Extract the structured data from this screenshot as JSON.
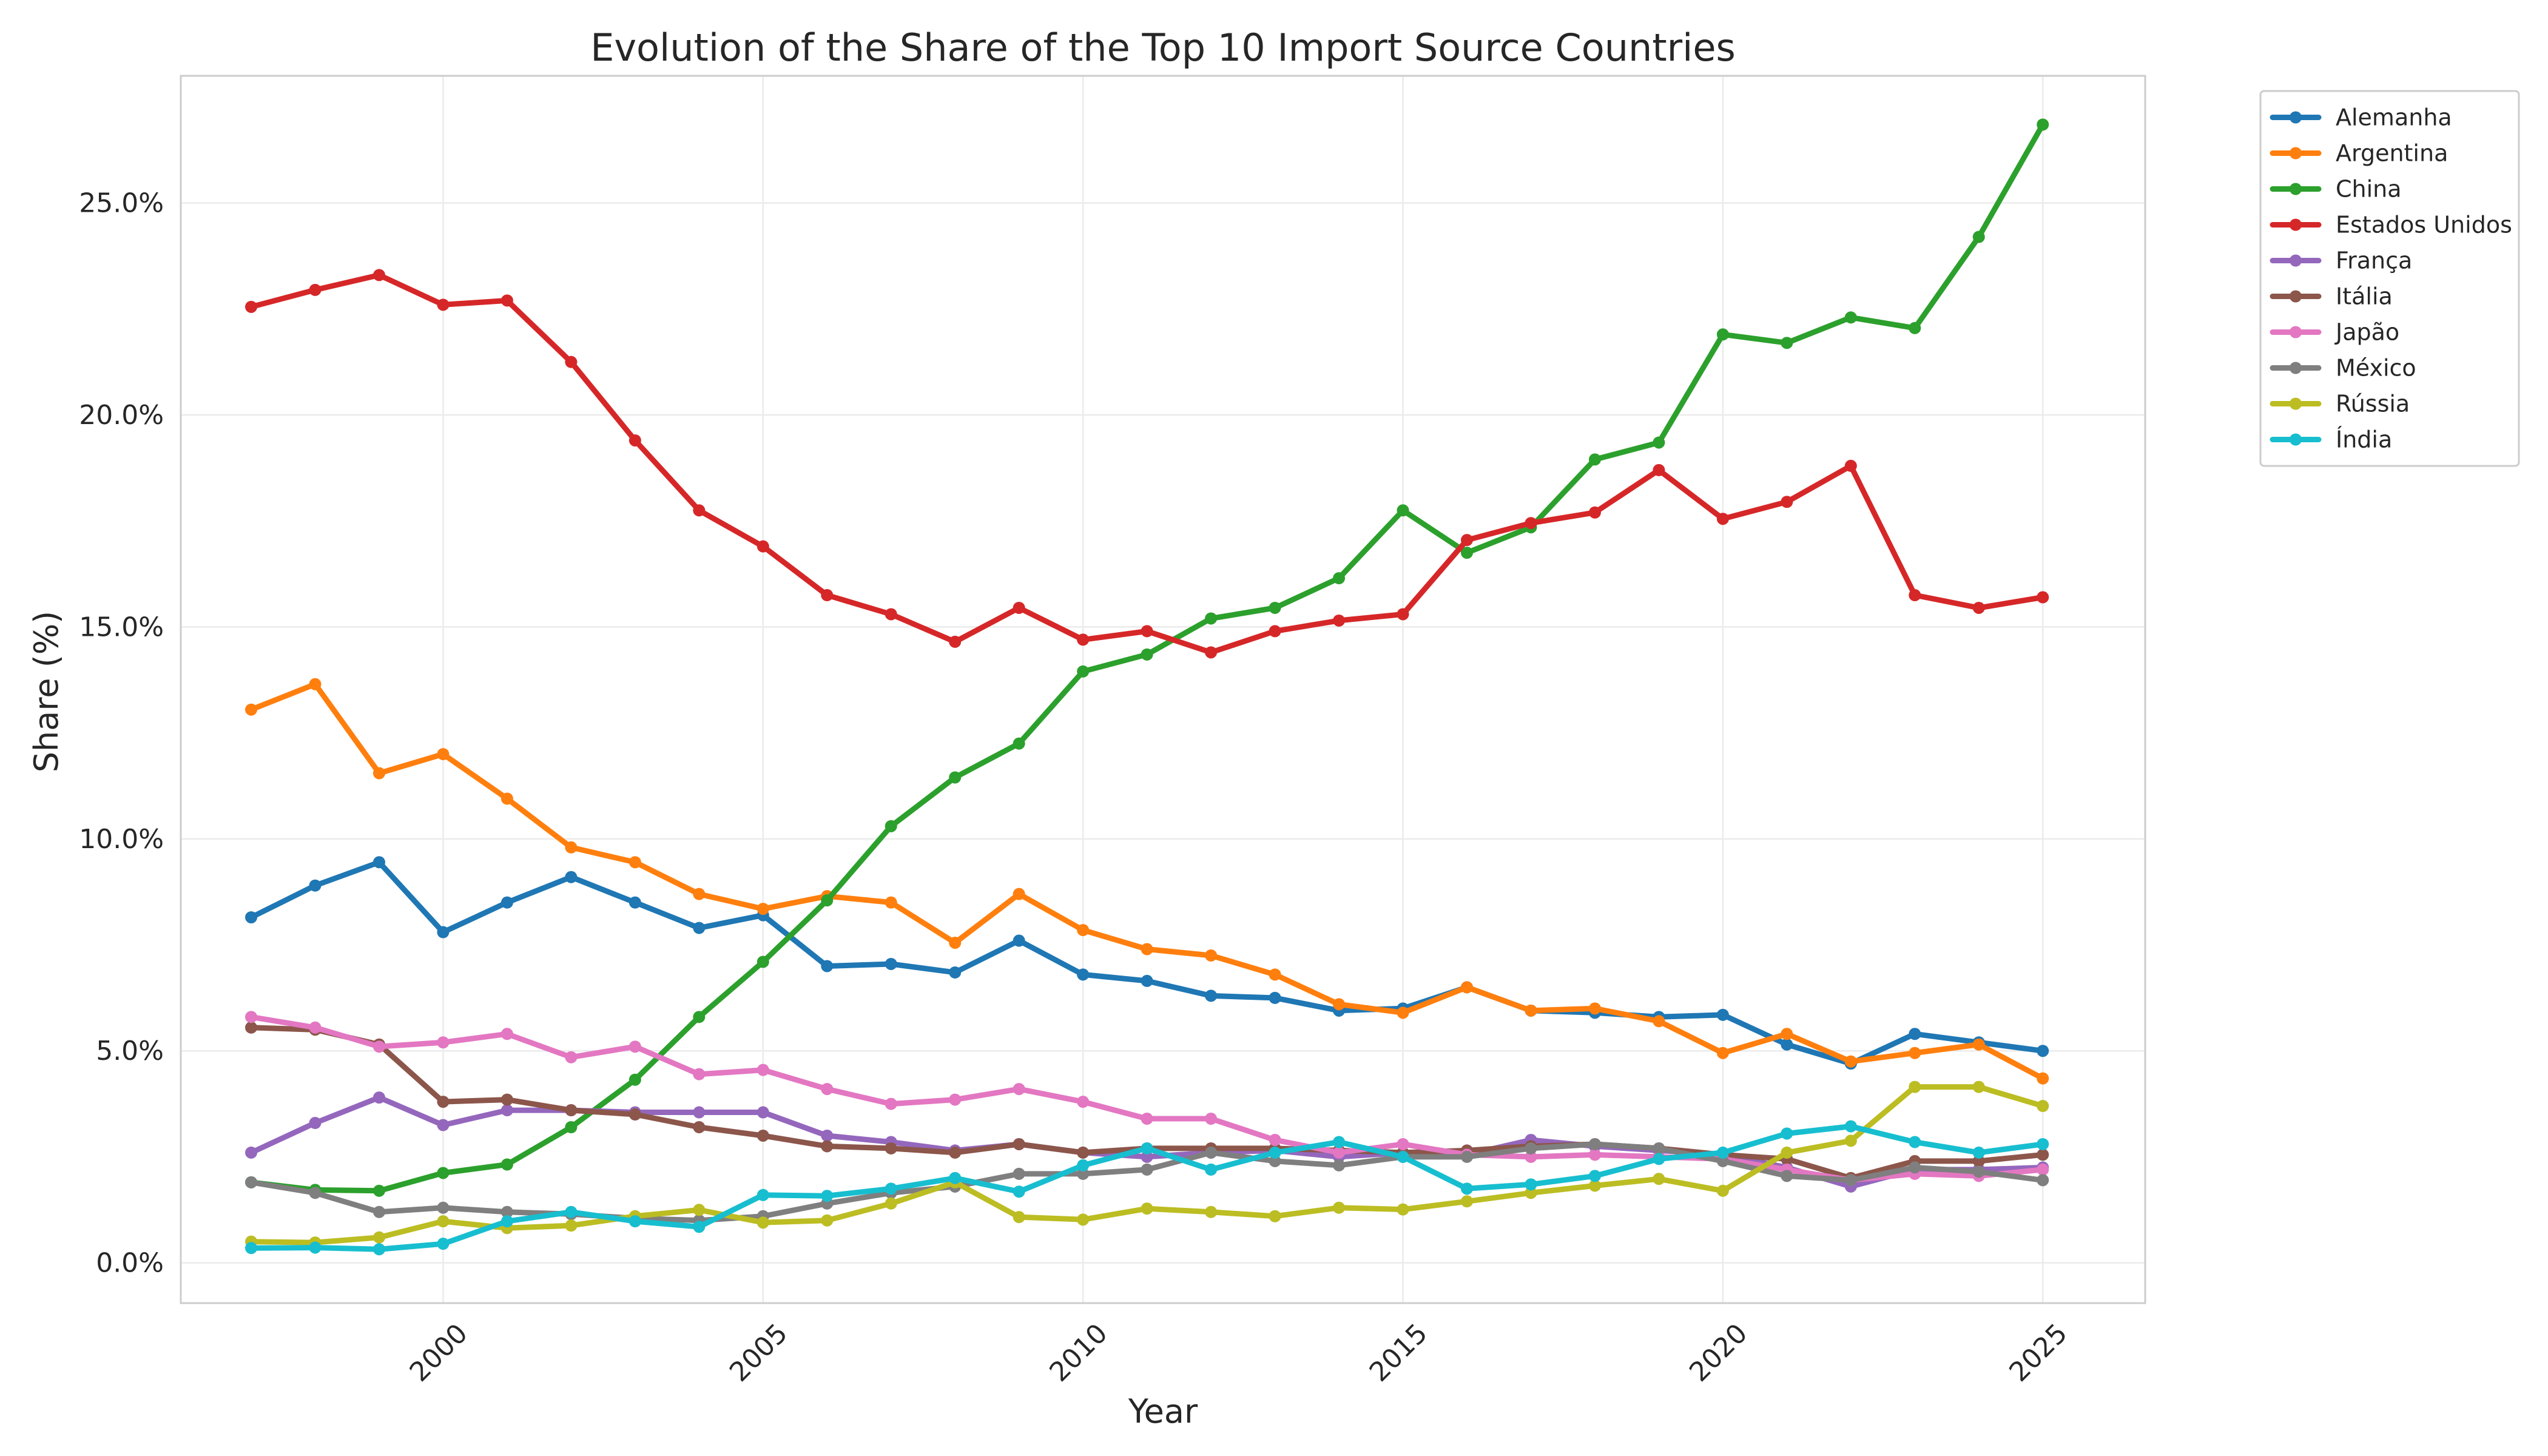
{
  "chart_data": {
    "type": "line",
    "title": "Evolution of the Share of the Top 10 Import Source Countries",
    "xlabel": "Year",
    "ylabel": "Share (%)",
    "xlim": [
      1995.9,
      2026.6
    ],
    "ylim": [
      -0.95,
      28.0
    ],
    "x_ticks": [
      2000,
      2005,
      2010,
      2015,
      2020,
      2025
    ],
    "x_tick_labels": [
      "2000",
      "2005",
      "2010",
      "2015",
      "2020",
      "2025"
    ],
    "y_ticks": [
      0,
      5,
      10,
      15,
      20,
      25
    ],
    "y_tick_labels": [
      "0.0%",
      "5.0%",
      "10.0%",
      "15.0%",
      "20.0%",
      "25.0%"
    ],
    "grid": true,
    "legend_position": "outside-top-right",
    "x": [
      1997,
      1998,
      1999,
      2000,
      2001,
      2002,
      2003,
      2004,
      2005,
      2006,
      2007,
      2008,
      2009,
      2010,
      2011,
      2012,
      2013,
      2014,
      2015,
      2016,
      2017,
      2018,
      2019,
      2020,
      2021,
      2022,
      2023,
      2024,
      2025
    ],
    "series": [
      {
        "name": "Alemanha",
        "color": "#1f77b4",
        "values": [
          8.15,
          8.9,
          9.45,
          7.8,
          8.5,
          9.1,
          8.5,
          7.9,
          8.2,
          7.0,
          7.05,
          6.85,
          7.6,
          6.8,
          6.65,
          6.3,
          6.25,
          5.95,
          6.0,
          6.5,
          5.95,
          5.9,
          5.8,
          5.85,
          5.15,
          4.7,
          5.4,
          5.2,
          5.0
        ]
      },
      {
        "name": "Argentina",
        "color": "#ff7f0e",
        "values": [
          13.05,
          13.65,
          11.55,
          12.0,
          10.95,
          9.8,
          9.45,
          8.7,
          8.35,
          8.65,
          8.5,
          7.55,
          8.7,
          7.85,
          7.4,
          7.25,
          6.8,
          6.1,
          5.9,
          6.5,
          5.95,
          6.0,
          5.7,
          4.95,
          5.4,
          4.75,
          4.95,
          5.15,
          4.35
        ]
      },
      {
        "name": "China",
        "color": "#2ca02c",
        "values": [
          1.9,
          1.72,
          1.7,
          2.12,
          2.32,
          3.2,
          4.32,
          5.8,
          7.1,
          8.55,
          10.3,
          11.45,
          12.25,
          13.95,
          14.35,
          15.2,
          15.45,
          16.15,
          17.75,
          16.75,
          17.35,
          18.95,
          19.35,
          21.9,
          21.7,
          22.3,
          22.05,
          24.2,
          26.85
        ]
      },
      {
        "name": "Estados Unidos",
        "color": "#d62728",
        "values": [
          22.55,
          22.95,
          23.3,
          22.6,
          22.7,
          21.25,
          19.4,
          17.75,
          16.9,
          15.75,
          15.3,
          14.65,
          15.45,
          14.7,
          14.9,
          14.4,
          14.9,
          15.15,
          15.3,
          17.05,
          17.45,
          17.7,
          18.7,
          17.55,
          17.95,
          18.8,
          15.75,
          15.45,
          15.7
        ]
      },
      {
        "name": "França",
        "color": "#9467bd",
        "values": [
          2.6,
          3.3,
          3.9,
          3.25,
          3.6,
          3.6,
          3.55,
          3.55,
          3.55,
          3.0,
          2.85,
          2.65,
          2.8,
          2.6,
          2.5,
          2.6,
          2.65,
          2.5,
          2.6,
          2.55,
          2.9,
          2.75,
          2.65,
          2.55,
          2.25,
          1.8,
          2.2,
          2.2,
          2.25
        ]
      },
      {
        "name": "Itália",
        "color": "#8c564b",
        "values": [
          5.55,
          5.5,
          5.15,
          3.8,
          3.85,
          3.6,
          3.5,
          3.2,
          3.0,
          2.75,
          2.7,
          2.6,
          2.8,
          2.6,
          2.7,
          2.7,
          2.7,
          2.65,
          2.6,
          2.65,
          2.75,
          2.8,
          2.7,
          2.55,
          2.45,
          2.0,
          2.4,
          2.4,
          2.55
        ]
      },
      {
        "name": "Japão",
        "color": "#e377c2",
        "values": [
          5.8,
          5.55,
          5.1,
          5.2,
          5.4,
          4.85,
          5.1,
          4.45,
          4.55,
          4.1,
          3.75,
          3.85,
          4.1,
          3.8,
          3.4,
          3.4,
          2.9,
          2.6,
          2.8,
          2.55,
          2.5,
          2.55,
          2.5,
          2.45,
          2.2,
          1.95,
          2.1,
          2.05,
          2.2
        ]
      },
      {
        "name": "México",
        "color": "#7f7f7f",
        "values": [
          1.9,
          1.65,
          1.2,
          1.3,
          1.2,
          1.15,
          1.05,
          1.0,
          1.1,
          1.4,
          1.65,
          1.8,
          2.1,
          2.1,
          2.2,
          2.6,
          2.4,
          2.3,
          2.5,
          2.5,
          2.7,
          2.8,
          2.7,
          2.4,
          2.05,
          1.95,
          2.25,
          2.15,
          1.95
        ]
      },
      {
        "name": "Rússia",
        "color": "#bcbd22",
        "values": [
          0.5,
          0.48,
          0.6,
          0.98,
          0.82,
          0.88,
          1.1,
          1.25,
          0.95,
          1.0,
          1.4,
          1.9,
          1.08,
          1.02,
          1.28,
          1.2,
          1.1,
          1.3,
          1.26,
          1.45,
          1.65,
          1.82,
          1.98,
          1.7,
          2.6,
          2.88,
          4.15,
          4.15,
          3.7
        ]
      },
      {
        "name": "Índia",
        "color": "#17becf",
        "values": [
          0.35,
          0.36,
          0.32,
          0.45,
          0.98,
          1.2,
          0.98,
          0.85,
          1.6,
          1.58,
          1.75,
          2.0,
          1.68,
          2.3,
          2.7,
          2.2,
          2.6,
          2.85,
          2.5,
          1.75,
          1.85,
          2.05,
          2.45,
          2.6,
          3.05,
          3.22,
          2.85,
          2.6,
          2.8
        ]
      }
    ]
  }
}
